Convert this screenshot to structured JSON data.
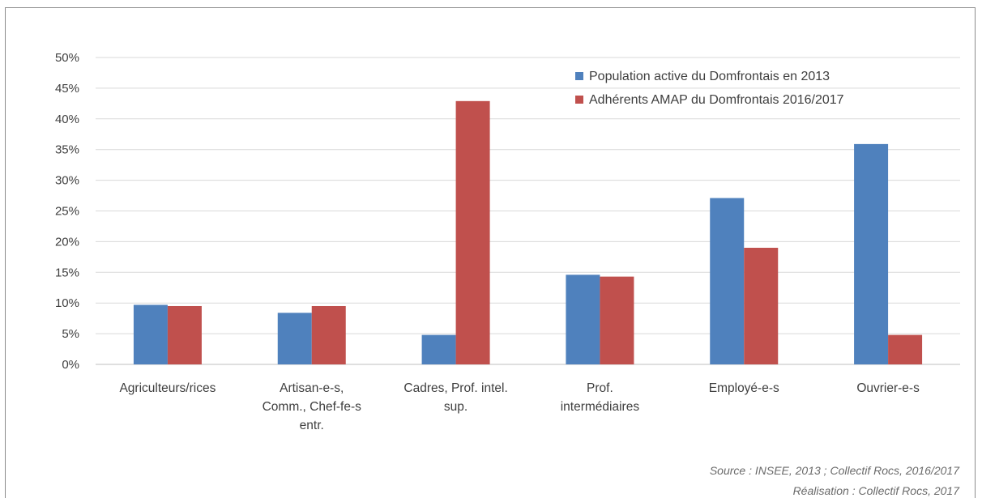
{
  "chart_data": {
    "type": "bar",
    "categories": [
      [
        "Agriculteurs/rices"
      ],
      [
        "Artisan-e-s,",
        "Comm., Chef-fe-s",
        "entr."
      ],
      [
        "Cadres, Prof. intel.",
        "sup."
      ],
      [
        "Prof.",
        "intermédiaires"
      ],
      [
        "Employé-e-s"
      ],
      [
        "Ouvrier-e-s"
      ]
    ],
    "series": [
      {
        "name": "Population active du Domfrontais en 2013",
        "color": "#4f81bd",
        "values": [
          9.7,
          8.4,
          4.8,
          14.6,
          27.1,
          35.9
        ]
      },
      {
        "name": "Adhérents AMAP du Domfrontais 2016/2017",
        "color": "#c0504d",
        "values": [
          9.5,
          9.5,
          42.9,
          14.3,
          19.0,
          4.8
        ]
      }
    ],
    "ylim": [
      0,
      50
    ],
    "yticks": [
      "0%",
      "5%",
      "10%",
      "15%",
      "20%",
      "25%",
      "30%",
      "35%",
      "40%",
      "45%",
      "50%"
    ],
    "grid": true,
    "legend_position": "top-right"
  },
  "source_lines": [
    "Source : INSEE, 2013 ; Collectif Rocs, 2016/2017",
    "Réalisation : Collectif Rocs, 2017"
  ]
}
